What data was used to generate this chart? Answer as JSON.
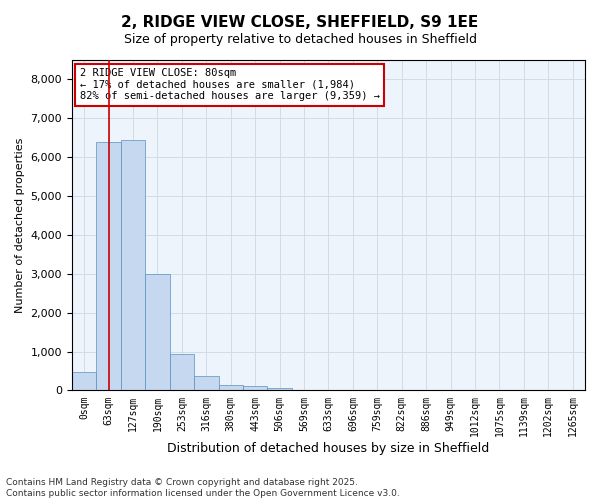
{
  "title_line1": "2, RIDGE VIEW CLOSE, SHEFFIELD, S9 1EE",
  "title_line2": "Size of property relative to detached houses in Sheffield",
  "xlabel": "Distribution of detached houses by size in Sheffield",
  "ylabel": "Number of detached properties",
  "bar_color": "#c5d8f0",
  "bar_edge_color": "#5a8fc0",
  "grid_color": "#d0dce8",
  "background_color": "#eef4fb",
  "vline_x": 1,
  "vline_color": "#cc0000",
  "annotation_text": "2 RIDGE VIEW CLOSE: 80sqm\n← 17% of detached houses are smaller (1,984)\n82% of semi-detached houses are larger (9,359) →",
  "annotation_box_color": "#ffffff",
  "annotation_box_edge": "#cc0000",
  "bins": [
    "0sqm",
    "63sqm",
    "127sqm",
    "190sqm",
    "253sqm",
    "316sqm",
    "380sqm",
    "443sqm",
    "506sqm",
    "569sqm",
    "633sqm",
    "696sqm",
    "759sqm",
    "822sqm",
    "886sqm",
    "949sqm",
    "1012sqm",
    "1075sqm",
    "1139sqm",
    "1202sqm",
    "1265sqm"
  ],
  "values": [
    480,
    6400,
    6450,
    3000,
    950,
    380,
    140,
    110,
    60,
    0,
    0,
    0,
    0,
    0,
    0,
    0,
    0,
    0,
    0,
    0,
    0
  ],
  "ylim": [
    0,
    8500
  ],
  "yticks": [
    0,
    1000,
    2000,
    3000,
    4000,
    5000,
    6000,
    7000,
    8000
  ],
  "footer_text": "Contains HM Land Registry data © Crown copyright and database right 2025.\nContains public sector information licensed under the Open Government Licence v3.0.",
  "figsize": [
    6.0,
    5.0
  ],
  "dpi": 100
}
